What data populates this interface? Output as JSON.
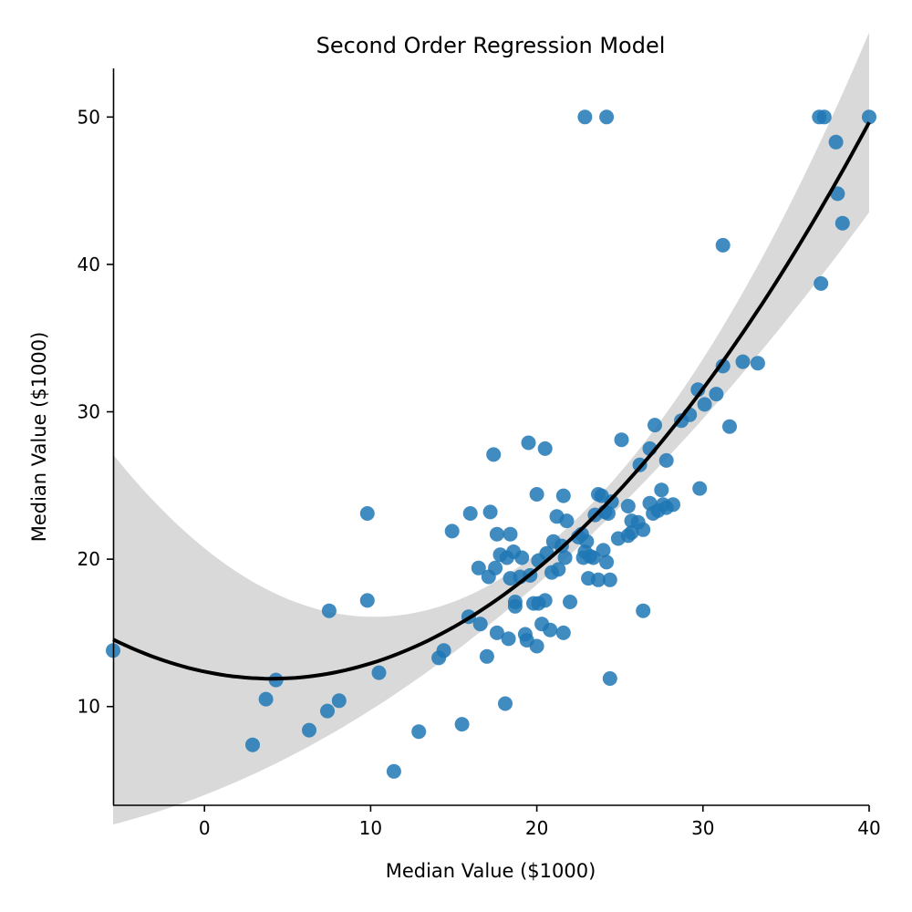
{
  "chart_data": {
    "type": "scatter",
    "title": "Second Order Regression Model",
    "xlabel": "Median Value ($1000)",
    "ylabel": "Median Value ($1000)",
    "xlim": [
      -5.5,
      40
    ],
    "ylim": [
      3.3,
      53.3
    ],
    "xticks": [
      0,
      10,
      20,
      30,
      40
    ],
    "yticks": [
      10,
      20,
      30,
      40,
      50
    ],
    "grid": false,
    "colors": {
      "points": "#1f77b4",
      "fit": "#000000",
      "band": "#d9d9d9"
    },
    "series": [
      {
        "points": [
          [
            -5.5,
            13.8
          ],
          [
            2.9,
            7.4
          ],
          [
            3.7,
            10.5
          ],
          [
            4.3,
            11.8
          ],
          [
            6.3,
            8.4
          ],
          [
            7.4,
            9.7
          ],
          [
            7.5,
            16.5
          ],
          [
            8.1,
            10.4
          ],
          [
            9.8,
            23.1
          ],
          [
            9.8,
            17.2
          ],
          [
            10.5,
            12.3
          ],
          [
            11.4,
            5.6
          ],
          [
            12.9,
            8.3
          ],
          [
            14.1,
            13.3
          ],
          [
            14.4,
            13.8
          ],
          [
            14.9,
            21.9
          ],
          [
            15.5,
            8.8
          ],
          [
            15.9,
            16.1
          ],
          [
            16.0,
            23.1
          ],
          [
            16.5,
            19.4
          ],
          [
            16.6,
            15.6
          ],
          [
            17.0,
            13.4
          ],
          [
            17.1,
            18.8
          ],
          [
            17.2,
            23.2
          ],
          [
            17.4,
            27.1
          ],
          [
            17.5,
            19.4
          ],
          [
            17.6,
            15.0
          ],
          [
            17.6,
            21.7
          ],
          [
            17.8,
            20.3
          ],
          [
            18.1,
            10.2
          ],
          [
            18.2,
            20.1
          ],
          [
            18.3,
            14.6
          ],
          [
            18.4,
            21.7
          ],
          [
            18.4,
            18.7
          ],
          [
            18.6,
            20.5
          ],
          [
            18.7,
            17.1
          ],
          [
            18.7,
            16.8
          ],
          [
            19.0,
            18.8
          ],
          [
            19.1,
            20.1
          ],
          [
            19.3,
            14.9
          ],
          [
            19.4,
            14.5
          ],
          [
            19.5,
            27.9
          ],
          [
            19.6,
            18.9
          ],
          [
            19.8,
            17.0
          ],
          [
            20.0,
            24.4
          ],
          [
            20.0,
            14.1
          ],
          [
            20.1,
            19.9
          ],
          [
            20.1,
            17.0
          ],
          [
            20.3,
            15.6
          ],
          [
            20.5,
            27.5
          ],
          [
            20.5,
            17.2
          ],
          [
            20.6,
            20.4
          ],
          [
            20.8,
            15.2
          ],
          [
            20.9,
            19.1
          ],
          [
            21.0,
            21.2
          ],
          [
            21.2,
            22.9
          ],
          [
            21.3,
            19.3
          ],
          [
            21.5,
            20.9
          ],
          [
            21.6,
            15.0
          ],
          [
            21.6,
            24.3
          ],
          [
            21.7,
            20.1
          ],
          [
            21.8,
            22.6
          ],
          [
            22.0,
            17.1
          ],
          [
            22.5,
            21.5
          ],
          [
            22.7,
            21.7
          ],
          [
            22.8,
            20.1
          ],
          [
            22.9,
            50.0
          ],
          [
            22.9,
            20.5
          ],
          [
            23.0,
            21.2
          ],
          [
            23.1,
            18.7
          ],
          [
            23.2,
            20.2
          ],
          [
            23.4,
            20.1
          ],
          [
            23.5,
            23.0
          ],
          [
            23.7,
            18.6
          ],
          [
            23.7,
            24.4
          ],
          [
            23.9,
            24.3
          ],
          [
            24.0,
            20.6
          ],
          [
            24.1,
            23.2
          ],
          [
            24.2,
            50.0
          ],
          [
            24.2,
            19.8
          ],
          [
            24.3,
            23.1
          ],
          [
            24.4,
            11.9
          ],
          [
            24.4,
            18.6
          ],
          [
            24.5,
            23.9
          ],
          [
            24.9,
            21.4
          ],
          [
            25.1,
            28.1
          ],
          [
            25.5,
            21.6
          ],
          [
            25.5,
            23.6
          ],
          [
            25.7,
            22.6
          ],
          [
            25.7,
            21.8
          ],
          [
            26.1,
            22.5
          ],
          [
            26.2,
            26.4
          ],
          [
            26.4,
            16.5
          ],
          [
            26.4,
            22.0
          ],
          [
            26.8,
            27.5
          ],
          [
            26.8,
            23.8
          ],
          [
            27.0,
            23.1
          ],
          [
            27.1,
            29.1
          ],
          [
            27.3,
            23.3
          ],
          [
            27.5,
            24.7
          ],
          [
            27.6,
            23.7
          ],
          [
            27.8,
            26.7
          ],
          [
            27.8,
            23.5
          ],
          [
            28.2,
            23.7
          ],
          [
            28.7,
            29.4
          ],
          [
            29.2,
            29.8
          ],
          [
            29.7,
            31.5
          ],
          [
            29.8,
            24.8
          ],
          [
            30.1,
            30.5
          ],
          [
            30.8,
            31.2
          ],
          [
            31.2,
            33.1
          ],
          [
            31.2,
            41.3
          ],
          [
            31.6,
            29.0
          ],
          [
            32.4,
            33.4
          ],
          [
            33.3,
            33.3
          ],
          [
            37.0,
            50.0
          ],
          [
            37.1,
            38.7
          ],
          [
            37.3,
            50.0
          ],
          [
            38.0,
            48.3
          ],
          [
            38.1,
            44.8
          ],
          [
            38.4,
            42.8
          ],
          [
            40.0,
            50.0
          ]
        ]
      }
    ],
    "fit": {
      "degree": 2,
      "coefficients": [
        0.0292,
        -0.2363,
        12.37
      ]
    }
  }
}
